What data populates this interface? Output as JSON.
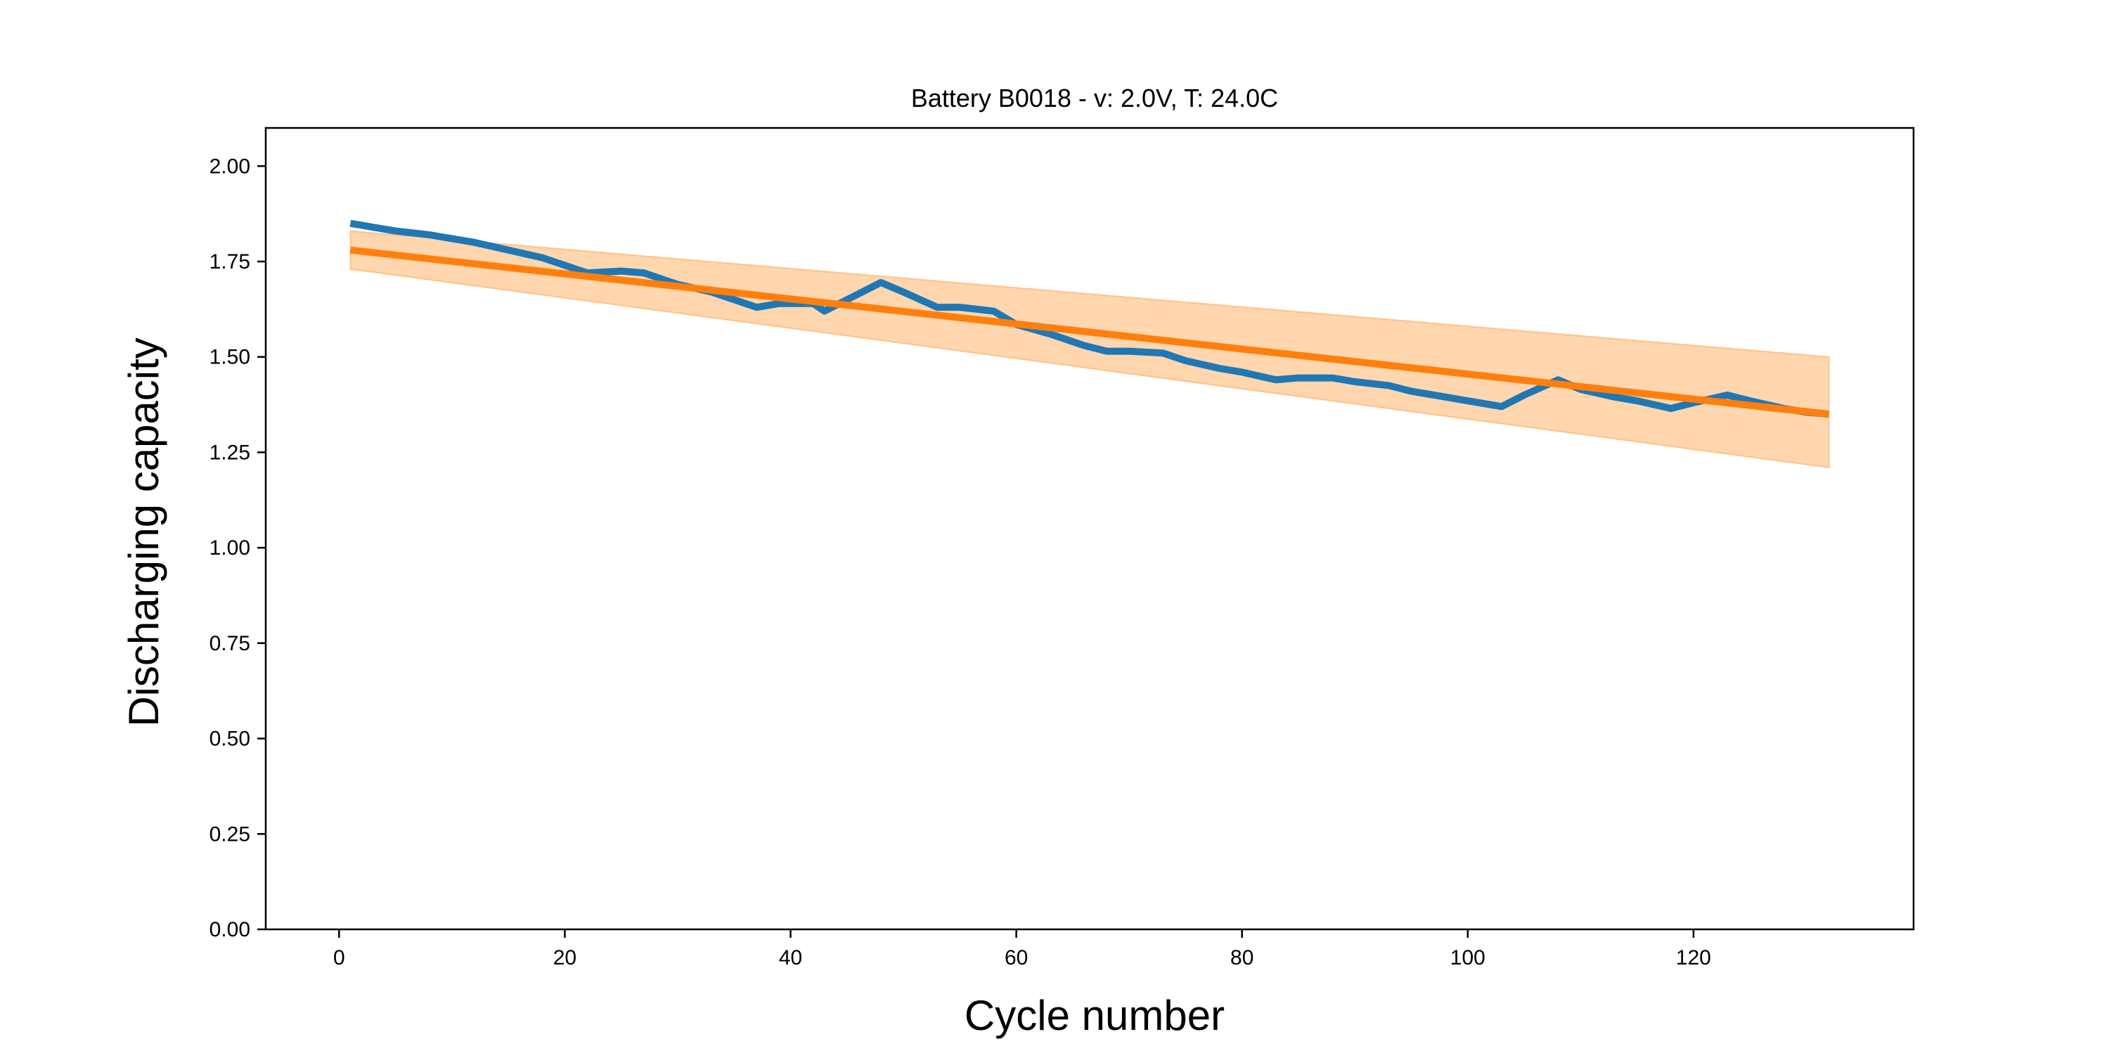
{
  "chart_data": {
    "type": "line",
    "title": "Battery B0018 - v: 2.0V, T: 24.0C",
    "xlabel": "Cycle number",
    "ylabel": "Discharging capacity",
    "xlim": [
      -6.5,
      139.5
    ],
    "ylim": [
      0,
      2.1
    ],
    "xticks": [
      0,
      20,
      40,
      60,
      80,
      100,
      120
    ],
    "yticks": [
      0.0,
      0.25,
      0.5,
      0.75,
      1.0,
      1.25,
      1.5,
      1.75,
      2.0
    ],
    "xtick_labels": [
      "0",
      "20",
      "40",
      "60",
      "80",
      "100",
      "120"
    ],
    "ytick_labels": [
      "0.00",
      "0.25",
      "0.50",
      "0.75",
      "1.00",
      "1.25",
      "1.50",
      "1.75",
      "2.00"
    ],
    "grid": false,
    "legend": "none",
    "colors": {
      "measured": "#1f77b4",
      "fit": "#ff7f0e",
      "band": "#ffbb78"
    },
    "series": [
      {
        "x": [
          1,
          3,
          5,
          8,
          10,
          12,
          15,
          18,
          20,
          22,
          25,
          27,
          30,
          33,
          37,
          39,
          42,
          43,
          45,
          48,
          50,
          53,
          55,
          58,
          60,
          63,
          66,
          68,
          70,
          73,
          75,
          78,
          80,
          83,
          85,
          88,
          90,
          93,
          95,
          98,
          100,
          103,
          105,
          108,
          110,
          113,
          115,
          118,
          120,
          123,
          125,
          128,
          130,
          132
        ],
        "values": [
          1.85,
          1.84,
          1.83,
          1.82,
          1.81,
          1.8,
          1.78,
          1.76,
          1.74,
          1.72,
          1.725,
          1.72,
          1.69,
          1.67,
          1.63,
          1.64,
          1.64,
          1.62,
          1.65,
          1.695,
          1.67,
          1.63,
          1.63,
          1.62,
          1.585,
          1.56,
          1.53,
          1.515,
          1.515,
          1.51,
          1.49,
          1.47,
          1.46,
          1.44,
          1.445,
          1.445,
          1.435,
          1.425,
          1.41,
          1.395,
          1.385,
          1.37,
          1.4,
          1.44,
          1.415,
          1.395,
          1.385,
          1.365,
          1.38,
          1.4,
          1.385,
          1.365,
          1.355,
          1.35
        ]
      },
      {
        "x": [
          1,
          132
        ],
        "values": [
          1.78,
          1.35
        ]
      }
    ],
    "band": {
      "x": [
        1,
        132
      ],
      "lower": [
        1.73,
        1.21
      ],
      "upper": [
        1.83,
        1.5
      ]
    }
  }
}
